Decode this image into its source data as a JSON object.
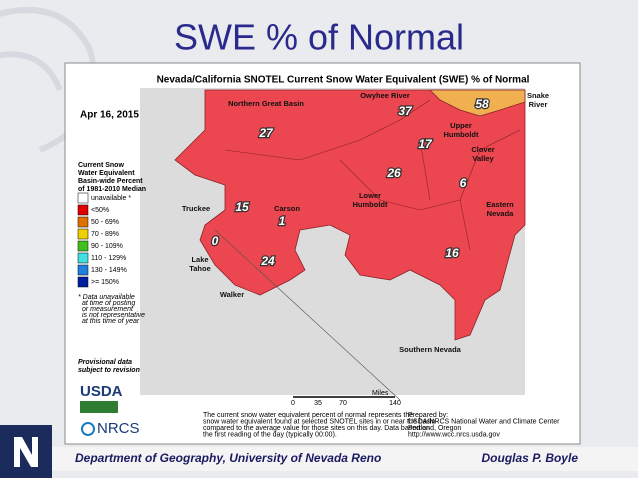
{
  "header": {
    "title": "SWE % of Normal"
  },
  "map": {
    "title": "Nevada/California SNOTEL Current Snow Water Equivalent (SWE) % of Normal",
    "date": "Apr 16, 2015",
    "legend": {
      "title": [
        "Current Snow",
        "Water Equivalent",
        "Basin-wide Percent",
        "of 1981-2010 Median"
      ],
      "items": [
        {
          "label": "unavailable *",
          "color": "#ffffff"
        },
        {
          "label": "<50%",
          "color": "#e00000"
        },
        {
          "label": "50 - 69%",
          "color": "#e07000"
        },
        {
          "label": "70 - 89%",
          "color": "#f0d000"
        },
        {
          "label": "90 - 109%",
          "color": "#40c020"
        },
        {
          "label": "110 - 129%",
          "color": "#40e0e0"
        },
        {
          "label": "130 - 149%",
          "color": "#2080e0"
        },
        {
          "label": ">= 150%",
          "color": "#0020a0"
        }
      ]
    },
    "footnote": [
      "* Data unavailable",
      "at time of posting",
      "or measurement",
      "is not representative",
      "at this time of year"
    ],
    "provisional": [
      "Provisional data",
      "subject to revision"
    ],
    "regions": [
      {
        "name": [
          "Northern Great Basin"
        ],
        "value": 27
      },
      {
        "name": [
          "Owyhee River"
        ],
        "value": 37
      },
      {
        "name": [
          "Snake",
          "River"
        ],
        "value": 58
      },
      {
        "name": [
          "Upper",
          "Humboldt"
        ],
        "value": 17
      },
      {
        "name": [
          "Clover",
          "Valley"
        ],
        "value": 6
      },
      {
        "name": [
          "Lower",
          "Humboldt"
        ],
        "value": 26
      },
      {
        "name": [
          "Eastern",
          "Nevada"
        ],
        "value": 16
      },
      {
        "name": [
          "Truckee"
        ],
        "value": 15
      },
      {
        "name": [
          "Carson"
        ],
        "value": 1
      },
      {
        "name": [
          "Lake",
          "Tahoe"
        ],
        "value": 0
      },
      {
        "name": [
          "Walker"
        ],
        "value": 24
      },
      {
        "name": [
          "Southern Nevada"
        ]
      }
    ],
    "scale": {
      "label": "Miles",
      "ticks": [
        0,
        35,
        70,
        140
      ]
    },
    "caption": [
      "The current snow water equivalent percent of normal represents the",
      "snow water equivalent found at selected SNOTEL sites in or near the basin",
      "compared to the average value for those sites on this day. Data based on",
      "the first reading of the day (typically 00:00)."
    ],
    "prepared": [
      "Prepared by:",
      "USDA/NRCS National Water and Climate Center",
      "Portland, Oregon",
      "http://www.wcc.nrcs.usda.gov"
    ],
    "logos": [
      "USDA",
      "NRCS"
    ]
  },
  "footer": {
    "left": "Department of Geography, University of Nevada Reno",
    "right": "Douglas P. Boyle"
  }
}
